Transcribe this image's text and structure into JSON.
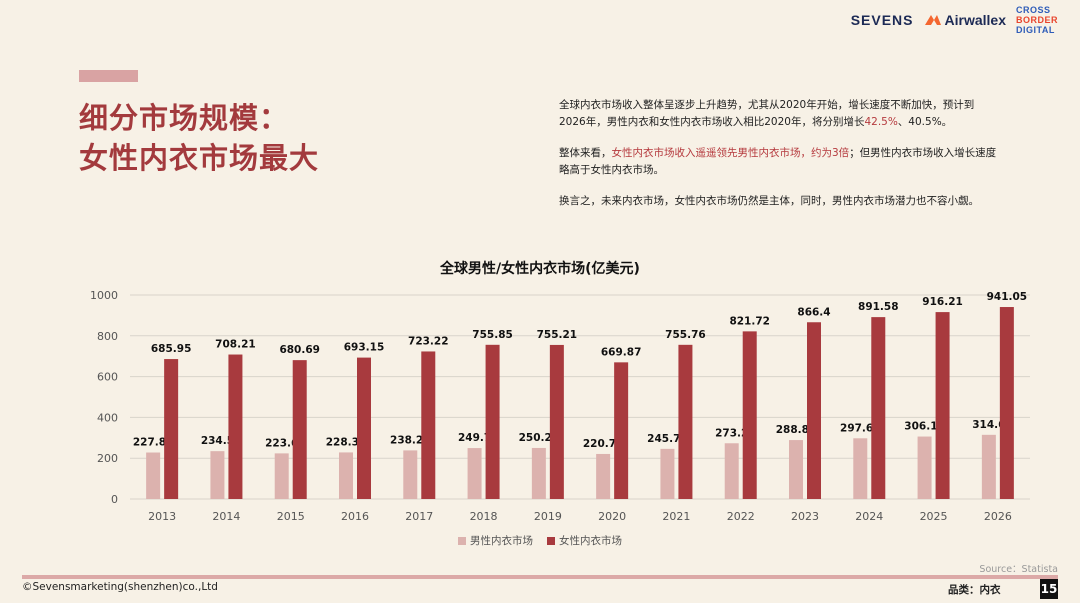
{
  "header": {
    "logo_sevens": "SEVENS",
    "logo_airwallex": "Airwallex",
    "logo_cbd": [
      "CROSS",
      "BORDER",
      "DIGITAL"
    ]
  },
  "title": {
    "line1": "细分市场规模：",
    "line2": "女性内衣市场最大"
  },
  "description": {
    "p1_text": "全球内衣市场收入整体呈逐步上升趋势，尤其从2020年开始，增长速度不断加快，预计到2026年，男性内衣和女性内衣市场收入相比2020年，将分别增长",
    "p1_highlight": "42.5%",
    "p1_tail": "、40.5%。",
    "p2_head": "整体来看，",
    "p2_highlight": "女性内衣市场收入遥遥领先男性内衣市场，约为3倍",
    "p2_tail": "；但男性内衣市场收入增长速度略高于女性内衣市场。",
    "p3": "换言之，未来内衣市场，女性内衣市场仍然是主体，同时，男性内衣市场潜力也不容小觑。"
  },
  "chart_data": {
    "type": "bar",
    "title": "全球男性/女性内衣市场(亿美元)",
    "categories": [
      "2013",
      "2014",
      "2015",
      "2016",
      "2017",
      "2018",
      "2019",
      "2020",
      "2021",
      "2022",
      "2023",
      "2024",
      "2025",
      "2026"
    ],
    "series": [
      {
        "name": "男性内衣市场",
        "color": "#dcb2ae",
        "values": [
          227.86,
          234.5,
          223.6,
          228.32,
          238.23,
          249.7,
          250.24,
          220.75,
          245.75,
          273.2,
          288.84,
          297.64,
          306.14,
          314.6
        ],
        "labels": [
          "227.86",
          "234.5",
          "223.6",
          "228.32",
          "238.23",
          "249.7",
          "250.24",
          "220.75",
          "245.75",
          "273.2",
          "288.84",
          "297.64",
          "306.14",
          "314.6"
        ]
      },
      {
        "name": "女性内衣市场",
        "color": "#a83a3e",
        "values": [
          685.95,
          708.21,
          680.69,
          693.15,
          723.22,
          755.85,
          755.21,
          669.87,
          755.76,
          821.72,
          866.4,
          891.58,
          916.21,
          941.05
        ],
        "labels": [
          "685.95",
          "708.21",
          "680.69",
          "693.15",
          "723.22",
          "755.85",
          "755.21",
          "669.87",
          "755.76",
          "821.72",
          "866.4",
          "891.58",
          "916.21",
          "941.05"
        ]
      }
    ],
    "yticks": [
      "0",
      "200",
      "400",
      "600",
      "800",
      "1000"
    ],
    "ylim": [
      0,
      1000
    ],
    "grid": true,
    "legend_position": "bottom"
  },
  "source": "Source：Statista",
  "footer": {
    "copyright": "©Sevensmarketing(shenzhen)co.,Ltd",
    "category": "品类：内衣",
    "page": "15"
  }
}
